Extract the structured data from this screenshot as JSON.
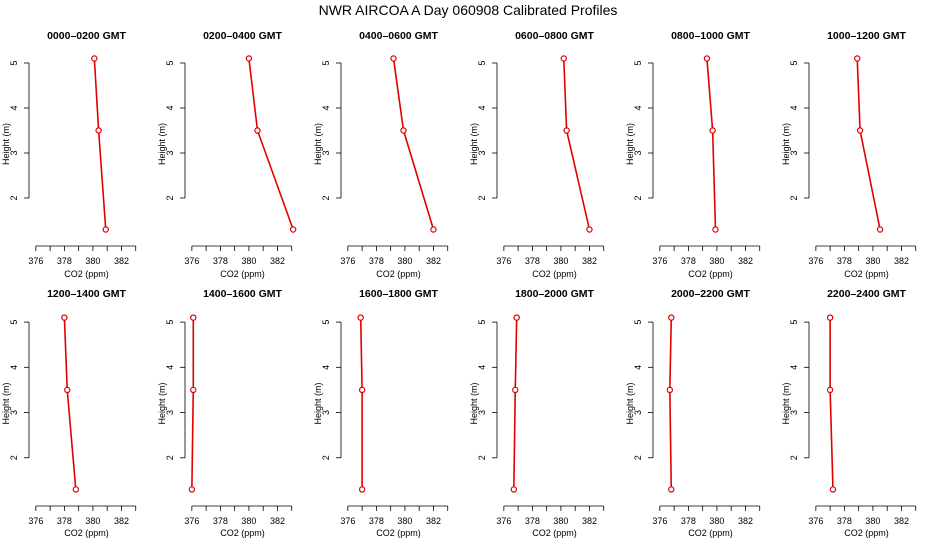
{
  "title": "NWR AIRCOA A  Day 060908  Calibrated Profiles",
  "colors": {
    "line": "#e00000",
    "axis": "#000000"
  },
  "chart_data": {
    "type": "line",
    "xlabel": "CO2 (ppm)",
    "ylabel": "Height (m)",
    "xlim": [
      375.8,
      383.3
    ],
    "ylim": [
      1.0,
      5.4
    ],
    "xticks": [
      376,
      377,
      378,
      379,
      380,
      381,
      382,
      383
    ],
    "xtick_labels": [
      "376",
      "378",
      "380",
      "382"
    ],
    "yticks": [
      2,
      3,
      4,
      5
    ],
    "ytick_labels": [
      "2",
      "3",
      "4",
      "5"
    ],
    "heights": [
      5.1,
      3.5,
      1.3
    ],
    "panels": [
      {
        "title": "0000–0200 GMT",
        "co2": [
          380.1,
          380.4,
          380.9
        ]
      },
      {
        "title": "0200–0400 GMT",
        "co2": [
          380.0,
          380.6,
          383.1
        ]
      },
      {
        "title": "0400–0600 GMT",
        "co2": [
          379.2,
          379.9,
          382.0
        ]
      },
      {
        "title": "0600–0800 GMT",
        "co2": [
          380.2,
          380.4,
          382.0
        ]
      },
      {
        "title": "0800–1000 GMT",
        "co2": [
          379.3,
          379.7,
          379.9
        ]
      },
      {
        "title": "1000–1200 GMT",
        "co2": [
          378.9,
          379.1,
          380.5
        ]
      },
      {
        "title": "1200–1400 GMT",
        "co2": [
          378.0,
          378.2,
          378.8
        ]
      },
      {
        "title": "1400–1600 GMT",
        "co2": [
          376.1,
          376.1,
          376.0
        ]
      },
      {
        "title": "1600–1800 GMT",
        "co2": [
          376.9,
          377.0,
          377.0
        ]
      },
      {
        "title": "1800–2000 GMT",
        "co2": [
          376.9,
          376.8,
          376.7
        ]
      },
      {
        "title": "2000–2200 GMT",
        "co2": [
          376.8,
          376.7,
          376.8
        ]
      },
      {
        "title": "2200–2400 GMT",
        "co2": [
          377.0,
          377.0,
          377.2
        ]
      }
    ]
  }
}
